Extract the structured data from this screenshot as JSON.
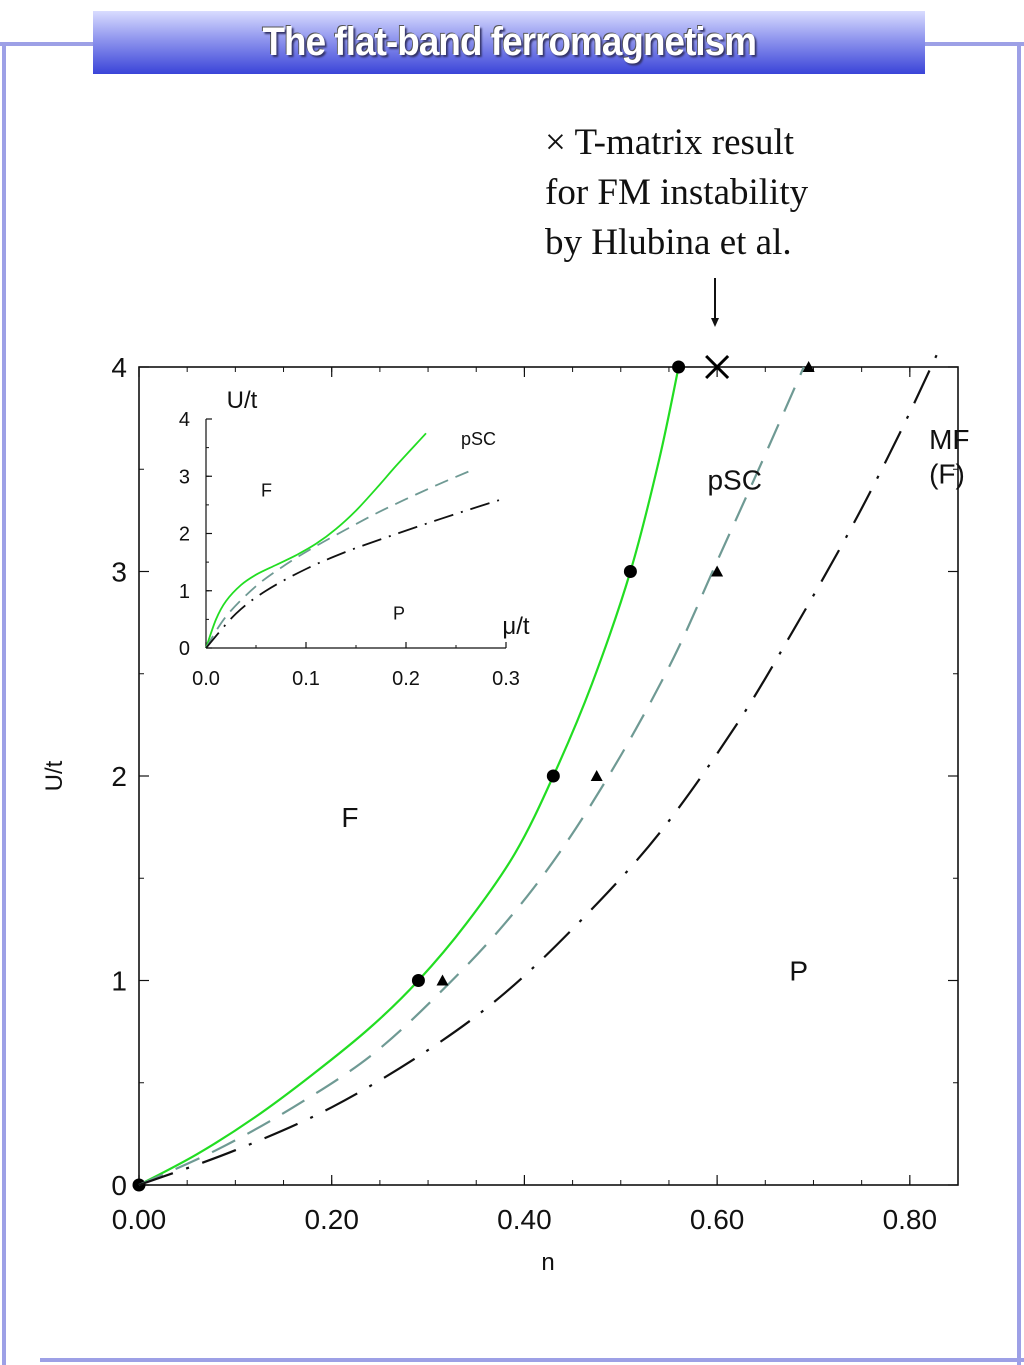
{
  "slide": {
    "title": "The flat-band ferromagnetism",
    "frame_color": "#9da0e6",
    "title_gradient": [
      "#d9dcff",
      "#8f95ee",
      "#3a44d8"
    ]
  },
  "annotation": {
    "lines": [
      "× T-matrix result",
      "for FM instability",
      "by Hlubina et al."
    ]
  },
  "chart_data": [
    {
      "type": "line",
      "title": "",
      "xlabel": "n",
      "ylabel": "U/t",
      "xlim": [
        0,
        0.85
      ],
      "ylim": [
        0,
        4
      ],
      "x_tick_labels": [
        "0.00",
        "0.20",
        "0.40",
        "0.60",
        "0.80"
      ],
      "x_ticks": [
        0,
        0.2,
        0.4,
        0.6,
        0.8
      ],
      "y_tick_labels": [
        "0",
        "1",
        "2",
        "3",
        "4"
      ],
      "y_ticks": [
        0,
        1,
        2,
        3,
        4
      ],
      "grid": false,
      "region_labels": [
        {
          "text": "F",
          "x": 0.21,
          "y": 1.75
        },
        {
          "text": "pSC",
          "x": 0.59,
          "y": 3.4
        },
        {
          "text": "P",
          "x": 0.675,
          "y": 1.0
        },
        {
          "text": "MF",
          "x": 0.82,
          "y": 3.6
        },
        {
          "text": "(F)",
          "x": 0.82,
          "y": 3.43
        }
      ],
      "series": [
        {
          "style": "solid",
          "color": "#22dd22",
          "x": [
            0,
            0.06,
            0.12,
            0.18,
            0.24,
            0.29,
            0.34,
            0.39,
            0.43,
            0.47,
            0.51,
            0.54,
            0.56
          ],
          "y": [
            0,
            0.15,
            0.33,
            0.54,
            0.77,
            1.0,
            1.28,
            1.62,
            2.0,
            2.45,
            3.0,
            3.55,
            4.0
          ],
          "markers": {
            "shape": "circle",
            "x": [
              0,
              0.29,
              0.43,
              0.51,
              0.56
            ],
            "y": [
              0,
              1.0,
              2.0,
              3.0,
              4.0
            ]
          }
        },
        {
          "style": "dashed",
          "color": "#6f9a94",
          "x": [
            0,
            0.08,
            0.16,
            0.24,
            0.31,
            0.38,
            0.44,
            0.5,
            0.555,
            0.6,
            0.645,
            0.69
          ],
          "y": [
            0,
            0.17,
            0.38,
            0.63,
            0.93,
            1.28,
            1.65,
            2.1,
            2.58,
            3.05,
            3.52,
            4.0
          ],
          "markers": {
            "shape": "triangle",
            "x": [
              0.315,
              0.475,
              0.6,
              0.695
            ],
            "y": [
              1.0,
              2.0,
              3.0,
              4.0
            ]
          }
        },
        {
          "style": "dashdot",
          "color": "#111111",
          "x": [
            0,
            0.1,
            0.2,
            0.3,
            0.38,
            0.46,
            0.54,
            0.62,
            0.68,
            0.74,
            0.79,
            0.83
          ],
          "y": [
            0,
            0.17,
            0.38,
            0.66,
            0.94,
            1.3,
            1.72,
            2.25,
            2.72,
            3.22,
            3.68,
            4.08
          ]
        }
      ],
      "special_markers": [
        {
          "shape": "x",
          "x": 0.6,
          "y": 4.0
        }
      ]
    },
    {
      "type": "line",
      "title": "",
      "xlabel": "μ/t",
      "ylabel": "U/t",
      "xlim": [
        0,
        0.3
      ],
      "ylim": [
        0,
        4
      ],
      "x_tick_labels": [
        "0.0",
        "0.1",
        "0.2",
        "0.3"
      ],
      "x_ticks": [
        0,
        0.1,
        0.2,
        0.3
      ],
      "y_tick_labels": [
        "0",
        "1",
        "2",
        "3",
        "4"
      ],
      "y_ticks": [
        0,
        1,
        2,
        3,
        4
      ],
      "grid": false,
      "region_labels": [
        {
          "text": "pSC",
          "x": 0.255,
          "y": 3.55
        },
        {
          "text": "F",
          "x": 0.055,
          "y": 2.65
        },
        {
          "text": "P",
          "x": 0.187,
          "y": 0.5
        }
      ],
      "series": [
        {
          "style": "solid",
          "color": "#22dd22",
          "x": [
            0,
            0.01,
            0.02,
            0.035,
            0.05,
            0.07,
            0.09,
            0.11,
            0.13,
            0.15,
            0.17,
            0.19,
            0.22
          ],
          "y": [
            0,
            0.5,
            0.82,
            1.1,
            1.28,
            1.45,
            1.62,
            1.82,
            2.08,
            2.4,
            2.78,
            3.18,
            3.75
          ]
        },
        {
          "style": "dashed",
          "color": "#6f9a94",
          "x": [
            0,
            0.02,
            0.05,
            0.08,
            0.11,
            0.14,
            0.17,
            0.2,
            0.23,
            0.265
          ],
          "y": [
            0,
            0.55,
            1.08,
            1.46,
            1.78,
            2.07,
            2.35,
            2.6,
            2.84,
            3.1
          ]
        },
        {
          "style": "dashdot",
          "color": "#111111",
          "x": [
            0,
            0.03,
            0.06,
            0.1,
            0.14,
            0.18,
            0.22,
            0.26,
            0.3
          ],
          "y": [
            0,
            0.6,
            1.0,
            1.38,
            1.68,
            1.93,
            2.17,
            2.4,
            2.62
          ]
        }
      ]
    }
  ]
}
